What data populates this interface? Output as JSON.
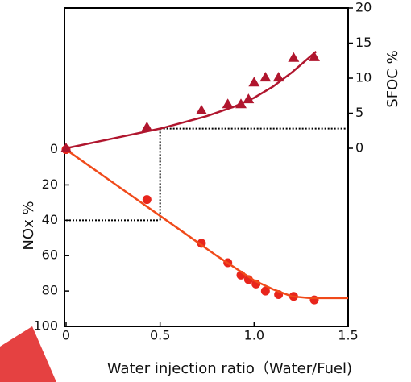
{
  "chart_data": {
    "type": "line",
    "xlabel": "Water injection ratio（Water/Fuel)",
    "ylabel": "NOx %",
    "y2label": "SFOC  %",
    "xlim": [
      0,
      1.5
    ],
    "xticks": [
      0,
      0.5,
      {
        "value": 1,
        "label": "1.0"
      },
      1.5
    ],
    "ylim": [
      100,
      -80
    ],
    "yticks": [
      0,
      20,
      40,
      60,
      80,
      100
    ],
    "y2lim": [
      -25.4,
      20
    ],
    "y2ticks": [
      0,
      5,
      10,
      15,
      20
    ],
    "series": [
      {
        "marker": "circle",
        "color": "#e8251c",
        "axis": "y",
        "x": [
          0,
          0.43,
          0.72,
          0.86,
          0.93,
          0.97,
          1.01,
          1.06,
          1.13,
          1.21,
          1.32
        ],
        "values": [
          0,
          28.3,
          53,
          64,
          71,
          73.5,
          76,
          80,
          82,
          83,
          85
        ]
      },
      {
        "marker": "none",
        "color": "#f04a1a",
        "axis": "y",
        "x": [
          0,
          0.2,
          0.4,
          0.6,
          0.8,
          1.0,
          1.1,
          1.2,
          1.3,
          1.5
        ],
        "values": [
          0,
          15,
          30,
          45,
          60,
          74,
          79,
          83,
          84,
          84
        ]
      },
      {
        "marker": "triangle",
        "color": "#b0162e",
        "axis": "y2",
        "x": [
          0,
          0.43,
          0.72,
          0.86,
          0.93,
          0.97,
          1.0,
          1.06,
          1.13,
          1.21,
          1.32
        ],
        "values": [
          0,
          3.0,
          5.4,
          6.3,
          6.3,
          7.0,
          9.4,
          10.1,
          10.1,
          12.9,
          13.0
        ]
      },
      {
        "marker": "none",
        "color": "#b0162e",
        "axis": "y2",
        "x": [
          0,
          0.25,
          0.5,
          0.75,
          0.9,
          1.0,
          1.1,
          1.2,
          1.33
        ],
        "values": [
          0,
          1.4,
          2.8,
          4.6,
          6.0,
          7.2,
          8.8,
          10.8,
          13.8
        ]
      }
    ],
    "reference": {
      "x": 0.5,
      "nox": 40,
      "sfoc": 2.8
    }
  }
}
